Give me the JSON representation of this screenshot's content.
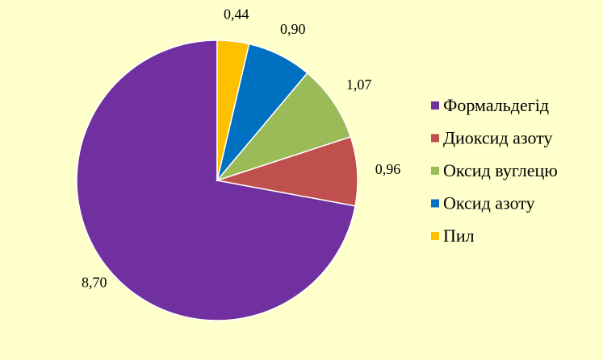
{
  "chart_data": {
    "type": "pie",
    "categories": [
      "Формальдегід",
      "Диоксид азоту",
      "Оксид вуглецю",
      "Оксид азоту",
      "Пил"
    ],
    "values": [
      8.7,
      0.96,
      1.07,
      0.9,
      0.44
    ],
    "value_labels": [
      "8,70",
      "0,96",
      "1,07",
      "0,90",
      "0,44"
    ],
    "colors": [
      "#7030a0",
      "#c0504d",
      "#9bbb59",
      "#0070c0",
      "#ffc000"
    ],
    "start_angle_deg": 0,
    "direction": "counterclockwise",
    "legend_position": "right",
    "background": "#ffffcc"
  }
}
